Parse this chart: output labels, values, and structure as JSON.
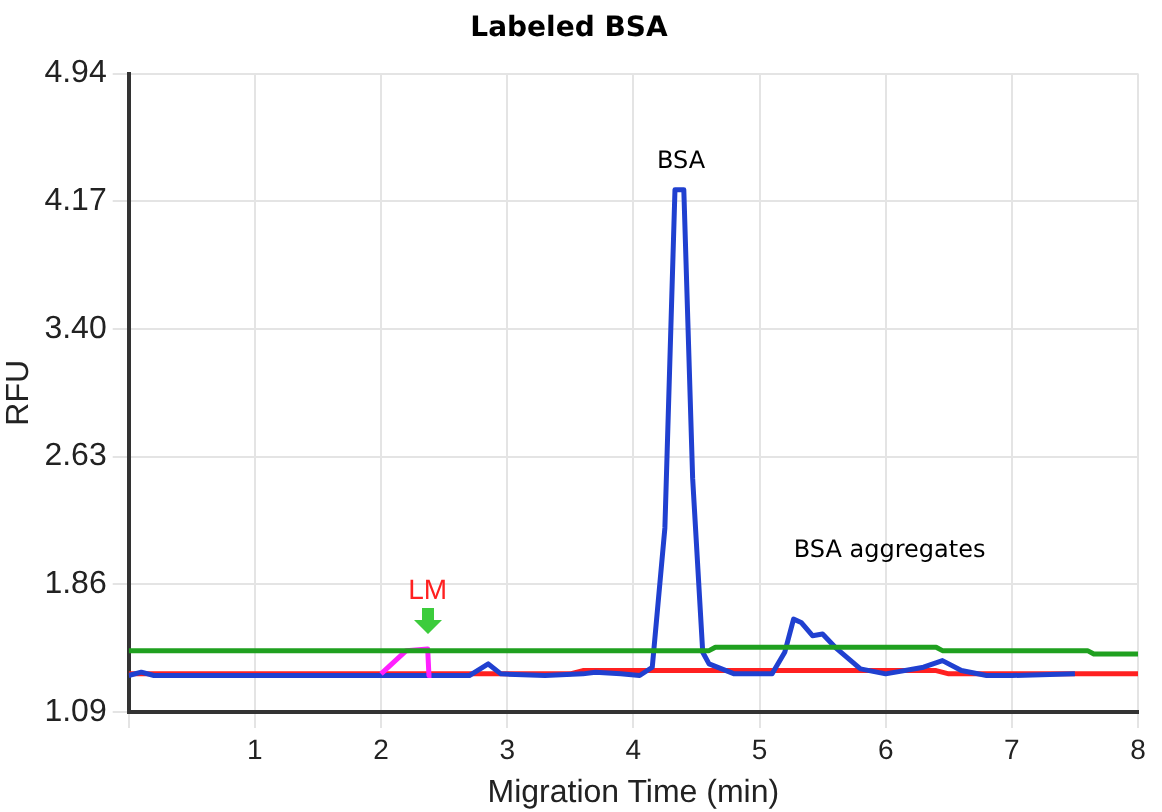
{
  "chart_data": {
    "type": "line",
    "title": "Labeled BSA",
    "xlabel": "Migration Time (min)",
    "ylabel": "RFU",
    "xlim": [
      0,
      8
    ],
    "xticks": [
      {
        "value": 0,
        "label": null
      },
      1,
      2,
      3,
      4,
      5,
      6,
      7,
      8
    ],
    "ylim": [
      1.09,
      4.94
    ],
    "yticks": [
      1.09,
      1.86,
      2.63,
      {
        "value": 3.4,
        "label": "3.40"
      },
      4.17,
      4.94
    ],
    "grid": true,
    "legend": false,
    "marker": "none",
    "line_style": "solid",
    "annotations": [
      {
        "text": "BSA",
        "x": 4.33,
        "y": 4.24
      },
      {
        "text": "BSA aggregates",
        "x": 5.27,
        "y": 1.65
      },
      {
        "text": "LM",
        "x": 2.37,
        "y": 1.47
      }
    ],
    "series": [
      {
        "color": "#1fa01f",
        "x": [
          0,
          4.6,
          4.65,
          6.4,
          6.45,
          7.6,
          7.65,
          8
        ],
        "values": [
          1.46,
          1.46,
          1.48,
          1.48,
          1.46,
          1.46,
          1.44,
          1.44
        ]
      },
      {
        "color": "#ff20ff",
        "x": [
          2.0,
          2.2,
          2.37,
          2.38,
          2.4
        ],
        "values": [
          1.32,
          1.46,
          1.47,
          1.31,
          1.31
        ]
      },
      {
        "color": "#2040d0",
        "x": [
          0,
          0.1,
          0.2,
          1.0,
          2.0,
          2.38,
          2.7,
          2.85,
          2.95,
          3.3,
          3.6,
          3.7,
          3.9,
          4.05,
          4.15,
          4.25,
          4.33,
          4.4,
          4.47,
          4.55,
          4.6,
          4.8,
          5.1,
          5.2,
          5.27,
          5.33,
          5.42,
          5.5,
          5.6,
          5.8,
          6.0,
          6.3,
          6.45,
          6.6,
          6.8,
          7.0,
          7.5
        ],
        "values": [
          1.31,
          1.33,
          1.31,
          1.31,
          1.31,
          1.31,
          1.31,
          1.38,
          1.32,
          1.31,
          1.32,
          1.33,
          1.32,
          1.31,
          1.36,
          2.2,
          4.24,
          4.24,
          2.5,
          1.45,
          1.38,
          1.32,
          1.32,
          1.45,
          1.65,
          1.63,
          1.55,
          1.56,
          1.48,
          1.35,
          1.32,
          1.36,
          1.4,
          1.34,
          1.31,
          1.31,
          1.32
        ]
      },
      {
        "color": "#ff2020",
        "x": [
          0,
          3.5,
          3.6,
          6.4,
          6.5,
          8
        ],
        "values": [
          1.32,
          1.32,
          1.34,
          1.34,
          1.32,
          1.32
        ]
      }
    ]
  }
}
